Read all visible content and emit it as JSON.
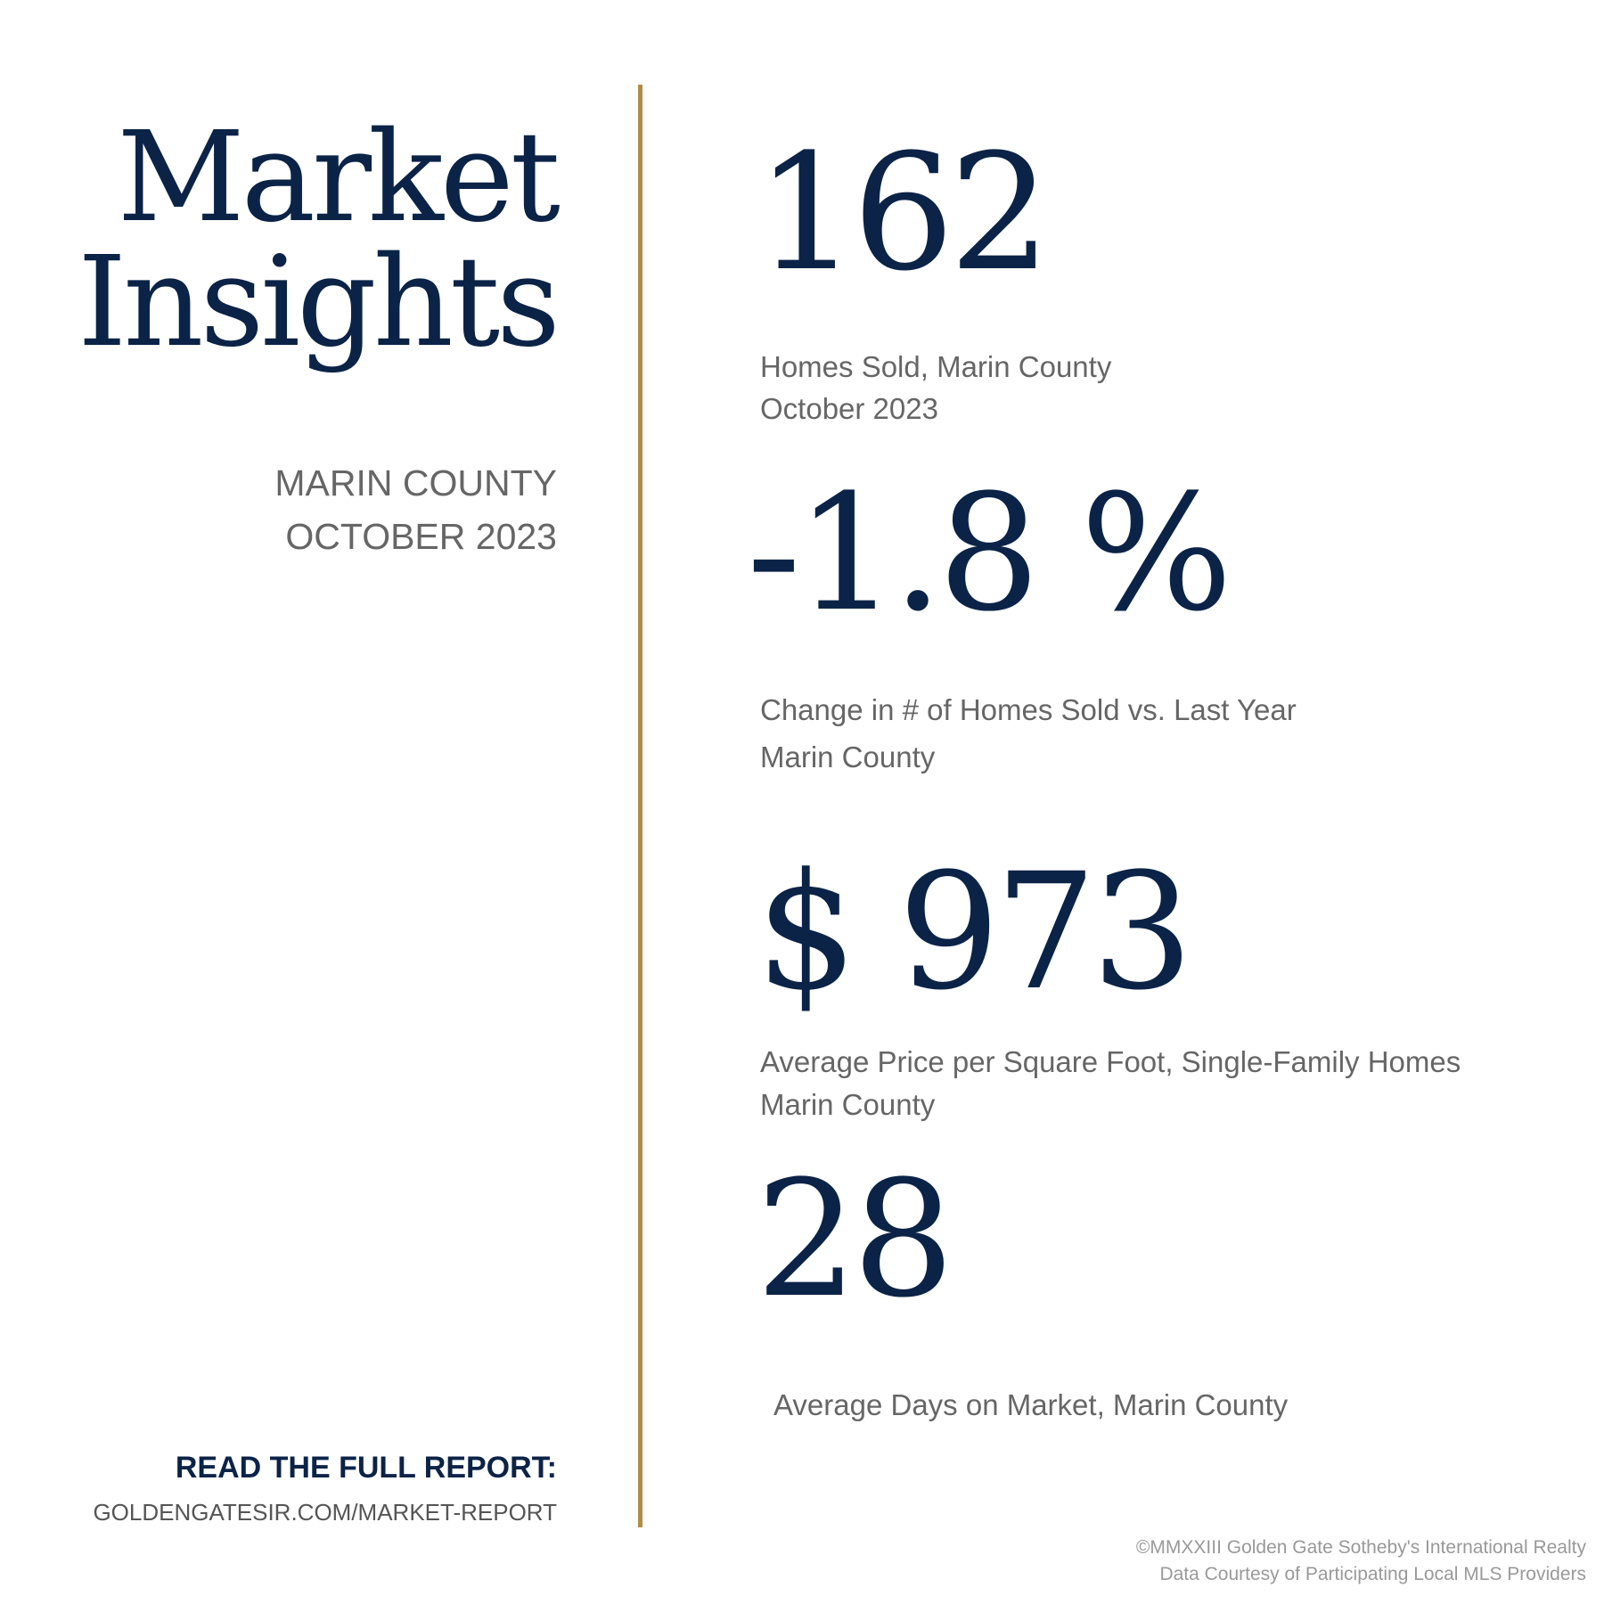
{
  "colors": {
    "navy": "#0b2347",
    "gold": "#b08d45",
    "gray_text": "#666666",
    "footer_gray": "#999999"
  },
  "header": {
    "title_line1": "Market",
    "title_line2": "Insights",
    "region": "MARIN COUNTY",
    "period": "OCTOBER 2023"
  },
  "stats": [
    {
      "value": "162",
      "label_line1": "Homes Sold, Marin County",
      "label_line2": "October 2023"
    },
    {
      "value": "-1.8 %",
      "label_line1": "Change in # of Homes Sold vs. Last Year",
      "label_line2": "Marin County"
    },
    {
      "value": "$ 973",
      "label_line1": "Average Price per Square Foot, Single-Family Homes",
      "label_line2": "Marin County"
    },
    {
      "value": "28",
      "label_line1": "Average Days on Market, Marin County"
    }
  ],
  "cta": {
    "title": "READ THE FULL REPORT:",
    "url": "GOLDENGATESIR.COM/MARKET-REPORT"
  },
  "footer": {
    "copyright": "©MMXXIII Golden Gate Sotheby's International Realty",
    "credit": "Data Courtesy of Participating Local MLS Providers"
  }
}
